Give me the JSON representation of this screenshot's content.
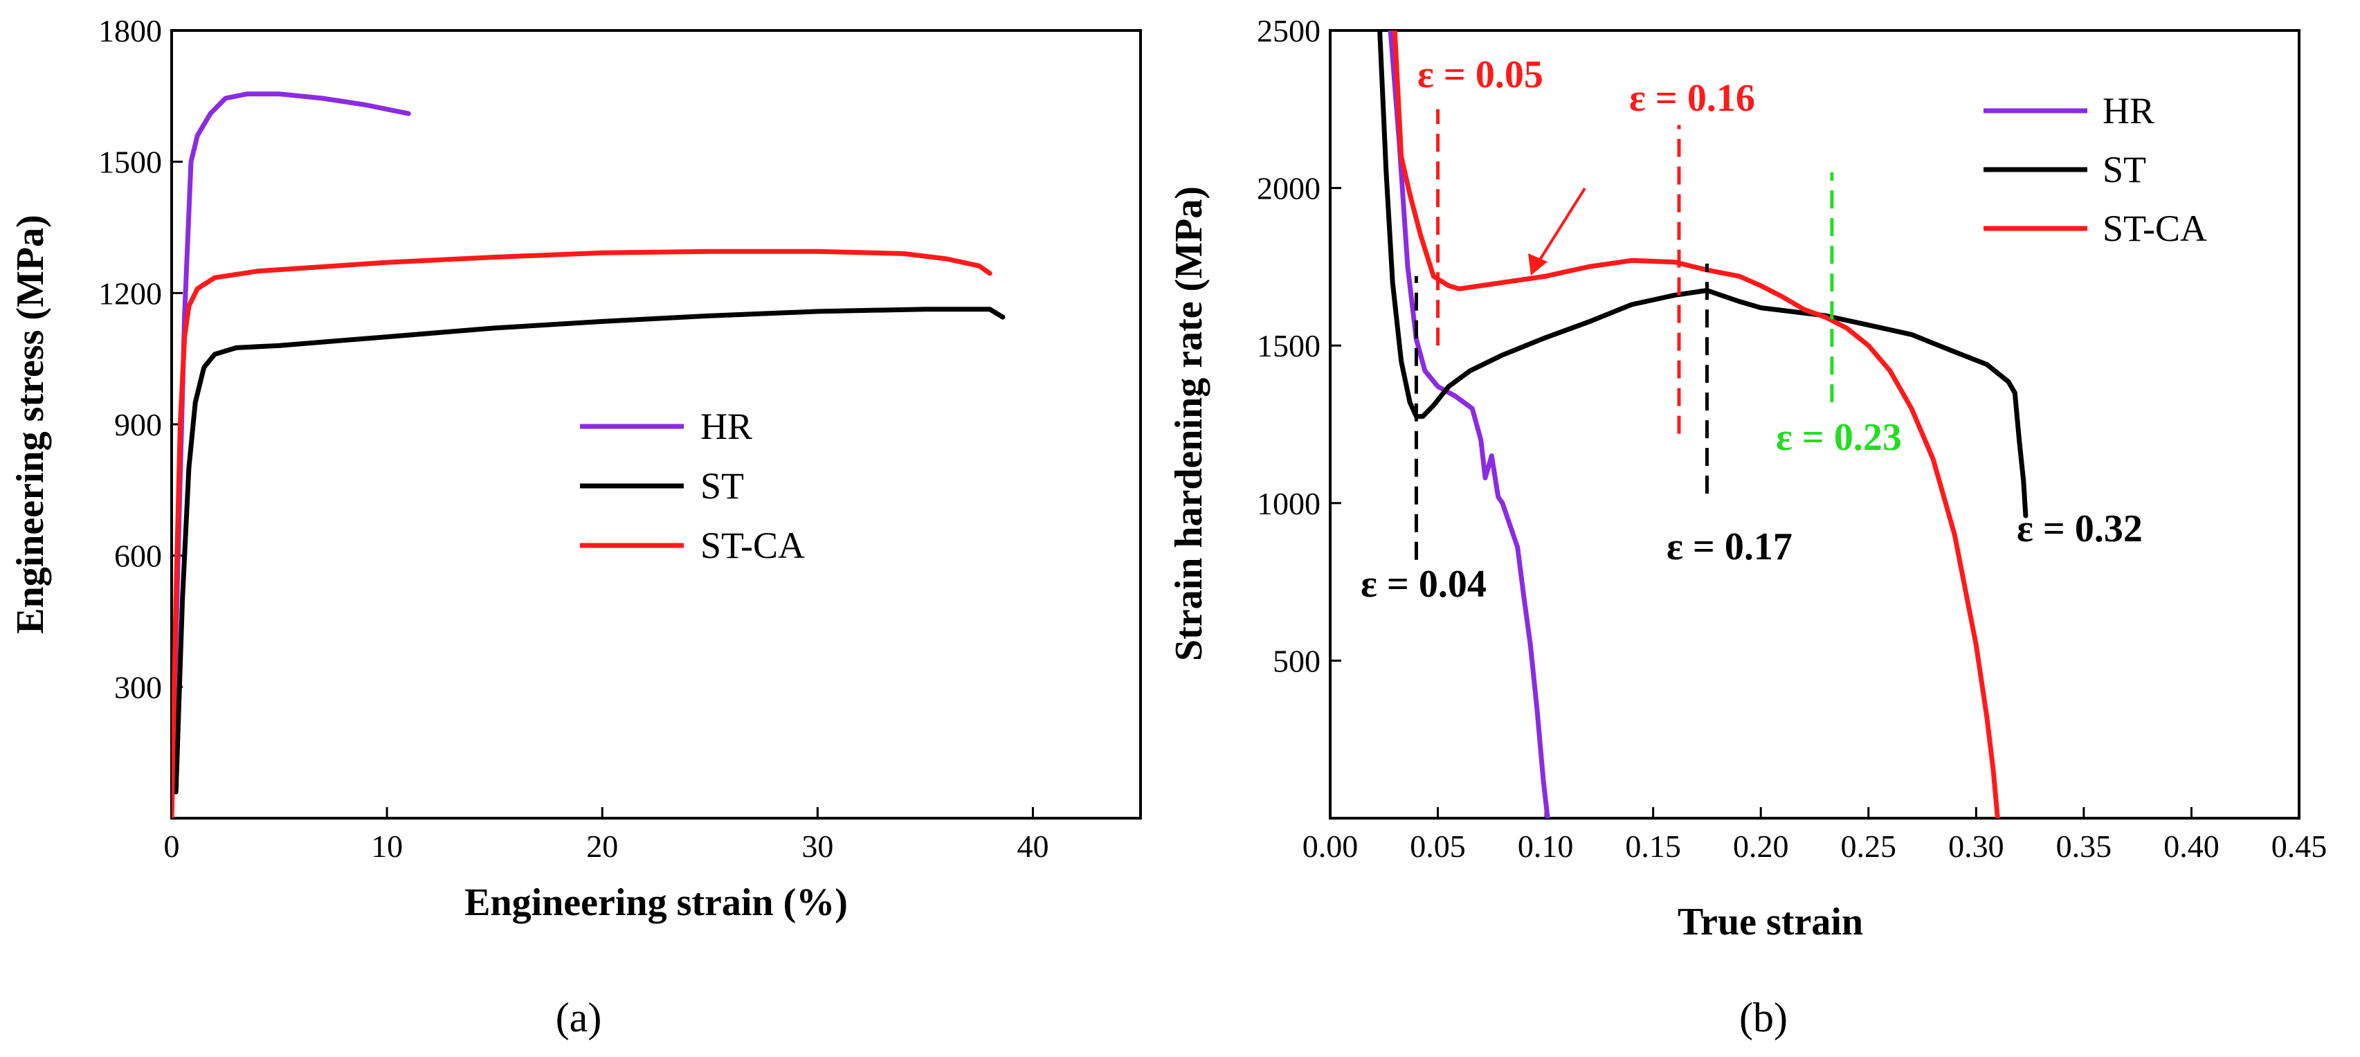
{
  "chart_data": [
    {
      "type": "line",
      "panel_label": "(a)",
      "title": "",
      "xlabel": "Engineering strain (%)",
      "ylabel": "Engineering stress (MPa)",
      "xlim": [
        0,
        45
      ],
      "ylim": [
        0,
        1800
      ],
      "xticks": [
        0,
        10,
        20,
        30,
        40
      ],
      "yticks": [
        300,
        600,
        900,
        1200,
        1500,
        1800
      ],
      "legend_position": "center-right",
      "series": [
        {
          "name": "HR",
          "color": "#8B2BE2",
          "points": [
            [
              0,
              0
            ],
            [
              0.3,
              600
            ],
            [
              0.6,
              1150
            ],
            [
              0.9,
              1500
            ],
            [
              1.2,
              1560
            ],
            [
              1.8,
              1610
            ],
            [
              2.5,
              1645
            ],
            [
              3.5,
              1655
            ],
            [
              5,
              1655
            ],
            [
              7,
              1645
            ],
            [
              9,
              1630
            ],
            [
              11,
              1610
            ]
          ]
        },
        {
          "name": "ST",
          "color": "#000000",
          "points": [
            [
              0.2,
              60
            ],
            [
              0.5,
              500
            ],
            [
              0.8,
              800
            ],
            [
              1.1,
              950
            ],
            [
              1.5,
              1030
            ],
            [
              2,
              1060
            ],
            [
              3,
              1075
            ],
            [
              5,
              1080
            ],
            [
              10,
              1100
            ],
            [
              15,
              1120
            ],
            [
              20,
              1135
            ],
            [
              25,
              1148
            ],
            [
              30,
              1158
            ],
            [
              35,
              1163
            ],
            [
              38,
              1163
            ],
            [
              38.6,
              1145
            ]
          ]
        },
        {
          "name": "ST-CA",
          "color": "#FF1A1A",
          "points": [
            [
              0,
              0
            ],
            [
              0.2,
              500
            ],
            [
              0.4,
              900
            ],
            [
              0.6,
              1100
            ],
            [
              0.8,
              1170
            ],
            [
              1.2,
              1210
            ],
            [
              2,
              1235
            ],
            [
              4,
              1250
            ],
            [
              10,
              1270
            ],
            [
              15,
              1282
            ],
            [
              20,
              1292
            ],
            [
              25,
              1295
            ],
            [
              30,
              1295
            ],
            [
              34,
              1290
            ],
            [
              36,
              1278
            ],
            [
              37.5,
              1262
            ],
            [
              38,
              1245
            ]
          ]
        }
      ]
    },
    {
      "type": "line",
      "panel_label": "(b)",
      "title": "",
      "xlabel": "True strain",
      "ylabel": "Strain hardening rate (MPa)",
      "xlim": [
        0,
        0.45
      ],
      "ylim": [
        0,
        2500
      ],
      "xticks": [
        "0.00",
        "0.05",
        "0.10",
        "0.15",
        "0.20",
        "0.25",
        "0.30",
        "0.35",
        "0.40",
        "0.45"
      ],
      "yticks": [
        500,
        1000,
        1500,
        2000,
        2500
      ],
      "legend_position": "top-right",
      "series": [
        {
          "name": "HR",
          "color": "#8B2BE2",
          "points": [
            [
              0.028,
              2500
            ],
            [
              0.032,
              2150
            ],
            [
              0.036,
              1750
            ],
            [
              0.04,
              1520
            ],
            [
              0.044,
              1420
            ],
            [
              0.05,
              1370
            ],
            [
              0.058,
              1340
            ],
            [
              0.066,
              1300
            ],
            [
              0.07,
              1200
            ],
            [
              0.072,
              1080
            ],
            [
              0.075,
              1150
            ],
            [
              0.078,
              1020
            ],
            [
              0.08,
              1000
            ],
            [
              0.083,
              940
            ],
            [
              0.087,
              860
            ],
            [
              0.09,
              700
            ],
            [
              0.093,
              550
            ],
            [
              0.096,
              350
            ],
            [
              0.099,
              120
            ],
            [
              0.101,
              0
            ]
          ]
        },
        {
          "name": "ST",
          "color": "#000000",
          "points": [
            [
              0.023,
              2500
            ],
            [
              0.026,
              2050
            ],
            [
              0.029,
              1700
            ],
            [
              0.033,
              1450
            ],
            [
              0.037,
              1320
            ],
            [
              0.04,
              1275
            ],
            [
              0.043,
              1275
            ],
            [
              0.048,
              1310
            ],
            [
              0.055,
              1370
            ],
            [
              0.065,
              1420
            ],
            [
              0.08,
              1470
            ],
            [
              0.1,
              1525
            ],
            [
              0.12,
              1575
            ],
            [
              0.14,
              1630
            ],
            [
              0.16,
              1660
            ],
            [
              0.175,
              1675
            ],
            [
              0.19,
              1640
            ],
            [
              0.2,
              1620
            ],
            [
              0.23,
              1595
            ],
            [
              0.25,
              1565
            ],
            [
              0.27,
              1535
            ],
            [
              0.29,
              1480
            ],
            [
              0.305,
              1440
            ],
            [
              0.315,
              1385
            ],
            [
              0.318,
              1350
            ],
            [
              0.32,
              1200
            ],
            [
              0.322,
              1070
            ],
            [
              0.323,
              960
            ]
          ]
        },
        {
          "name": "ST-CA",
          "color": "#FF1A1A",
          "points": [
            [
              0.03,
              2500
            ],
            [
              0.033,
              2100
            ],
            [
              0.037,
              1980
            ],
            [
              0.042,
              1850
            ],
            [
              0.048,
              1720
            ],
            [
              0.055,
              1690
            ],
            [
              0.06,
              1680
            ],
            [
              0.07,
              1690
            ],
            [
              0.08,
              1700
            ],
            [
              0.1,
              1720
            ],
            [
              0.12,
              1750
            ],
            [
              0.14,
              1770
            ],
            [
              0.16,
              1765
            ],
            [
              0.175,
              1740
            ],
            [
              0.19,
              1720
            ],
            [
              0.2,
              1690
            ],
            [
              0.21,
              1655
            ],
            [
              0.22,
              1615
            ],
            [
              0.23,
              1590
            ],
            [
              0.24,
              1555
            ],
            [
              0.25,
              1500
            ],
            [
              0.26,
              1420
            ],
            [
              0.27,
              1300
            ],
            [
              0.28,
              1140
            ],
            [
              0.29,
              900
            ],
            [
              0.3,
              550
            ],
            [
              0.305,
              320
            ],
            [
              0.308,
              150
            ],
            [
              0.31,
              0
            ]
          ]
        }
      ],
      "annotations": [
        {
          "label": "ε = 0.05",
          "x": 0.05,
          "color": "#FF1A1A",
          "line_from": 1500,
          "line_to": 2250
        },
        {
          "label": "ε = 0.16",
          "x": 0.162,
          "color": "#FF1A1A",
          "line_from": 1220,
          "line_to": 2200
        },
        {
          "label": "ε = 0.23",
          "x": 0.233,
          "color": "#22DD22",
          "line_from": 1320,
          "line_to": 2050
        },
        {
          "label": "ε = 0.04",
          "x": 0.04,
          "color": "#000000",
          "line_from": 820,
          "line_to": 1720
        },
        {
          "label": "ε = 0.17",
          "x": 0.175,
          "color": "#000000",
          "line_from": 1030,
          "line_to": 1760
        },
        {
          "label": "ε = 0.32",
          "x": 0.323,
          "color": "#000000",
          "line_from": null,
          "line_to": null
        }
      ]
    }
  ]
}
